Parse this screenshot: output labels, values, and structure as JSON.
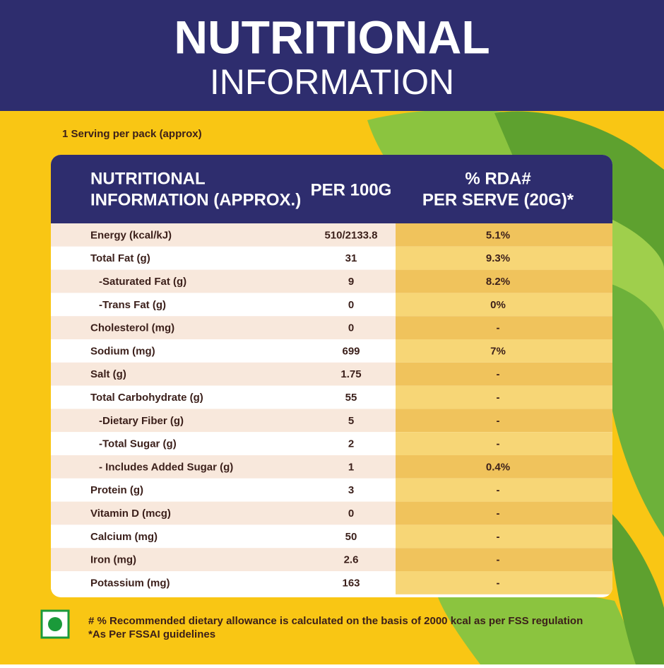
{
  "header": {
    "title": "NUTRITIONAL",
    "subtitle": "INFORMATION"
  },
  "serving": "1 Serving per pack (approx)",
  "table": {
    "columns": [
      [
        "NUTRITIONAL",
        "INFORMATION (APPROX.)"
      ],
      [
        "PER 100G"
      ],
      [
        "% RDA#",
        "PER SERVE (20G)*"
      ]
    ],
    "rows": [
      [
        "Energy (kcal/kJ)",
        "510/2133.8",
        "5.1%"
      ],
      [
        "Total Fat (g)",
        "31",
        "9.3%"
      ],
      [
        "-Saturated Fat (g)",
        "9",
        "8.2%"
      ],
      [
        "-Trans Fat (g)",
        "0",
        "0%"
      ],
      [
        "Cholesterol (mg)",
        "0",
        "-"
      ],
      [
        "Sodium (mg)",
        "699",
        "7%"
      ],
      [
        "Salt (g)",
        "1.75",
        "-"
      ],
      [
        "Total Carbohydrate (g)",
        "55",
        "-"
      ],
      [
        "-Dietary Fiber (g)",
        "5",
        "-"
      ],
      [
        "-Total Sugar (g)",
        "2",
        "-"
      ],
      [
        "- Includes Added Sugar (g)",
        "1",
        "0.4%"
      ],
      [
        "Protein (g)",
        "3",
        "-"
      ],
      [
        "Vitamin D (mcg)",
        "0",
        "-"
      ],
      [
        "Calcium (mg)",
        "50",
        "-"
      ],
      [
        "Iron (mg)",
        "2.6",
        "-"
      ],
      [
        "Potassium (mg)",
        "163",
        "-"
      ]
    ]
  },
  "footnotes": [
    "# % Recommended dietary allowance  is calculated on the basis of 2000 kcal as per FSS regulation",
    "*As Per FSSAI guidelines"
  ]
}
